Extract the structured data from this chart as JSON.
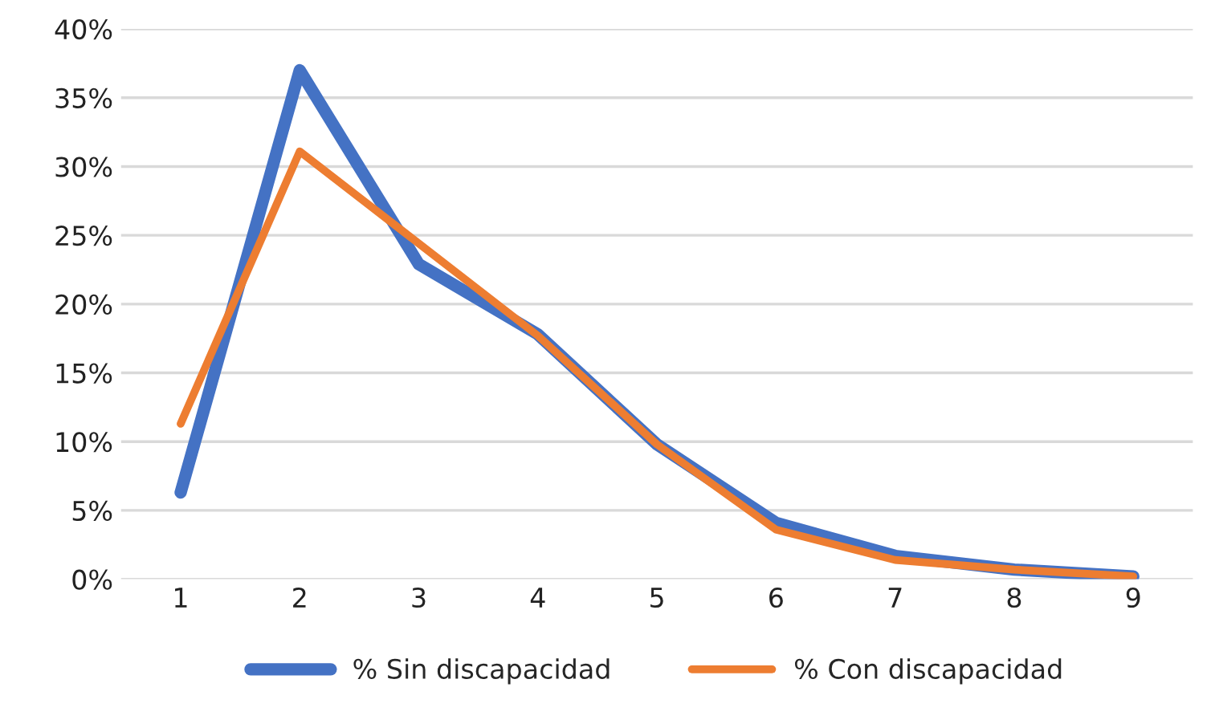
{
  "chart_data": {
    "type": "line",
    "categories": [
      "1",
      "2",
      "3",
      "4",
      "5",
      "6",
      "7",
      "8",
      "9"
    ],
    "series": [
      {
        "name": "% Sin discapacidad",
        "color": "#4472c4",
        "values": [
          6.3,
          37.0,
          22.9,
          17.8,
          9.8,
          4.1,
          1.7,
          0.7,
          0.2
        ]
      },
      {
        "name": "% Con discapacidad",
        "color": "#ed7d31",
        "values": [
          11.3,
          31.1,
          24.4,
          17.7,
          9.8,
          3.6,
          1.4,
          0.7,
          0.2
        ]
      }
    ],
    "ylim": [
      0,
      40
    ],
    "yticks": [
      {
        "value": 0,
        "label": "0%"
      },
      {
        "value": 5,
        "label": "5%"
      },
      {
        "value": 10,
        "label": "10%"
      },
      {
        "value": 15,
        "label": "15%"
      },
      {
        "value": 20,
        "label": "20%"
      },
      {
        "value": 25,
        "label": "25%"
      },
      {
        "value": 30,
        "label": "30%"
      },
      {
        "value": 35,
        "label": "35%"
      },
      {
        "value": 40,
        "label": "40%"
      }
    ],
    "grid": "y",
    "legend": "bottom",
    "marker": "none",
    "line_style": "solid"
  }
}
